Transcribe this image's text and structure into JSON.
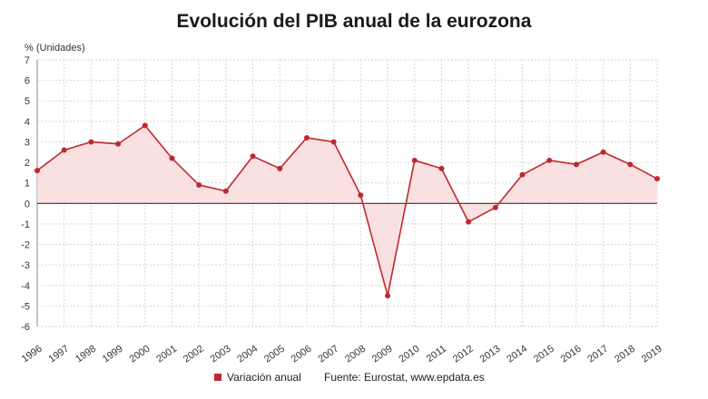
{
  "title": "Evolución del PIB anual de la eurozona",
  "source": "Fuente: Eurostat, www.epdata.es",
  "colors": {
    "line": "#c0282d",
    "area": "#f9dcdc",
    "marker": "#c0282d"
  },
  "chart_data": {
    "type": "line",
    "title": "Evolución del PIB anual de la eurozona",
    "ylabel": "% (Unidades)",
    "xlabel": "",
    "ylim": [
      -6,
      7
    ],
    "yticks": [
      -6,
      -5,
      -4,
      -3,
      -2,
      -1,
      0,
      1,
      2,
      3,
      4,
      5,
      6,
      7
    ],
    "grid": true,
    "legend": "bottom",
    "categories": [
      "1996",
      "1997",
      "1998",
      "1999",
      "2000",
      "2001",
      "2002",
      "2003",
      "2004",
      "2005",
      "2006",
      "2007",
      "2008",
      "2009",
      "2010",
      "2011",
      "2012",
      "2013",
      "2014",
      "2015",
      "2016",
      "2017",
      "2018",
      "2019"
    ],
    "series": [
      {
        "name": "Variación anual",
        "values": [
          1.6,
          2.6,
          3.0,
          2.9,
          3.8,
          2.2,
          0.9,
          0.6,
          2.3,
          1.7,
          3.2,
          3.0,
          0.4,
          -4.5,
          2.1,
          1.7,
          -0.9,
          -0.2,
          1.4,
          2.1,
          1.9,
          2.5,
          1.9,
          1.2
        ]
      }
    ]
  }
}
